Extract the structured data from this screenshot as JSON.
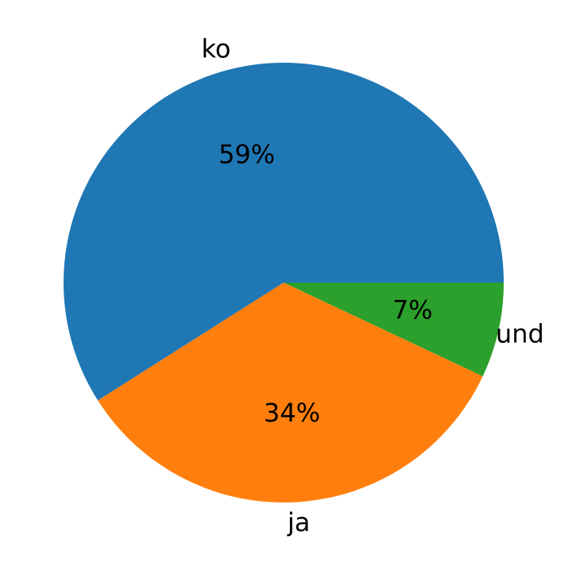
{
  "chart_data": {
    "type": "pie",
    "categories": [
      "ko",
      "ja",
      "und"
    ],
    "values": [
      59,
      34,
      7
    ],
    "value_labels": [
      "59%",
      "34%",
      "7%"
    ],
    "colors": [
      "#1f77b4",
      "#ff7f0e",
      "#2ca02c"
    ]
  }
}
